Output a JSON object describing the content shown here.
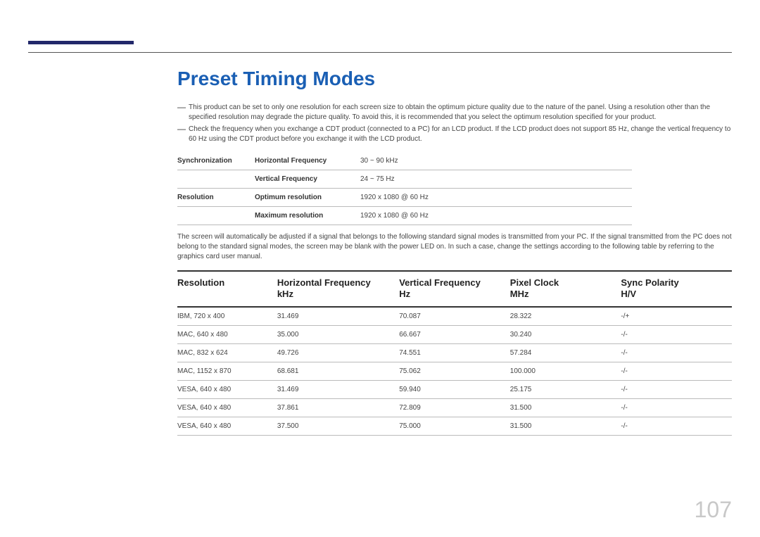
{
  "title": "Preset Timing Modes",
  "notes": [
    "This product can be set to only one resolution for each screen size to obtain the optimum picture quality due to the nature of the panel. Using a resolution other than the specified resolution may degrade the picture quality. To avoid this, it is recommended that you select the optimum resolution specified for your product.",
    "Check the frequency when you exchange a CDT product (connected to a PC) for an LCD product. If the LCD product does not support 85 Hz, change the vertical frequency to 60 Hz using the CDT product before you exchange it with the LCD product."
  ],
  "spec_rows": [
    {
      "group": "Synchronization",
      "label": "Horizontal Frequency",
      "value": "30 ~ 90 kHz"
    },
    {
      "group": "",
      "label": "Vertical Frequency",
      "value": "24 ~ 75 Hz"
    },
    {
      "group": "Resolution",
      "label": "Optimum resolution",
      "value": "1920 x 1080 @ 60 Hz"
    },
    {
      "group": "",
      "label": "Maximum resolution",
      "value": "1920 x 1080 @ 60 Hz"
    }
  ],
  "mid_paragraph": "The screen will automatically be adjusted if a signal that belongs to the following standard signal modes is transmitted from your PC. If the signal transmitted from the PC does not belong to the standard signal modes, the screen may be blank with the power LED on. In such a case, change the settings according to the following table by referring to the graphics card user manual.",
  "columns": [
    {
      "l1": "Resolution",
      "l2": ""
    },
    {
      "l1": "Horizontal Frequency",
      "l2": "kHz"
    },
    {
      "l1": "Vertical Frequency",
      "l2": "Hz"
    },
    {
      "l1": "Pixel Clock",
      "l2": "MHz"
    },
    {
      "l1": "Sync Polarity",
      "l2": "H/V"
    }
  ],
  "rows": [
    [
      "IBM, 720 x 400",
      "31.469",
      "70.087",
      "28.322",
      "-/+"
    ],
    [
      "MAC, 640 x 480",
      "35.000",
      "66.667",
      "30.240",
      "-/-"
    ],
    [
      "MAC, 832 x 624",
      "49.726",
      "74.551",
      "57.284",
      "-/-"
    ],
    [
      "MAC, 1152 x 870",
      "68.681",
      "75.062",
      "100.000",
      "-/-"
    ],
    [
      "VESA, 640 x 480",
      "31.469",
      "59.940",
      "25.175",
      "-/-"
    ],
    [
      "VESA, 640 x 480",
      "37.861",
      "72.809",
      "31.500",
      "-/-"
    ],
    [
      "VESA, 640 x 480",
      "37.500",
      "75.000",
      "31.500",
      "-/-"
    ]
  ],
  "page_number": "107",
  "colors": {
    "accent": "#1a5fb4",
    "header_bar": "#22286a",
    "text": "#333333",
    "muted": "#444444",
    "rule": "#bbbbbb",
    "heavy_rule": "#333333",
    "page_num": "#c8c8c8",
    "background": "#ffffff"
  }
}
